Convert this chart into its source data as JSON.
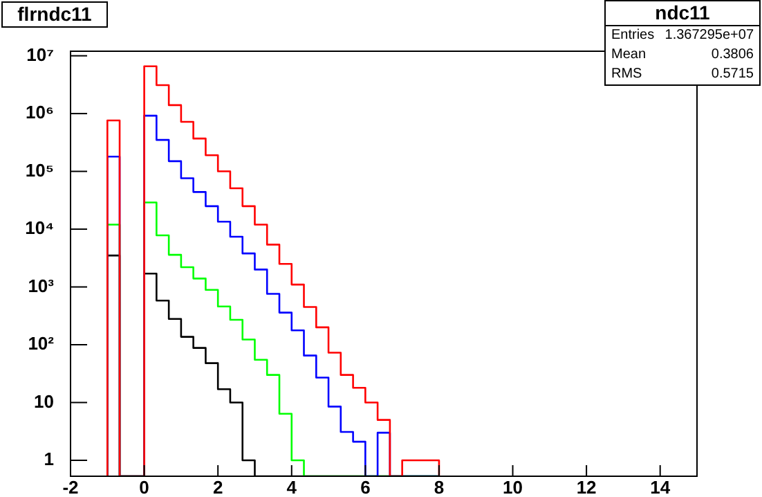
{
  "chart_data": {
    "type": "histogram",
    "title": "flrndc11",
    "annotations": [
      "ndc11",
      "Entries 1.367295e+07",
      "Mean 0.3806",
      "RMS 0.5715"
    ],
    "bins": [
      -1,
      -0.667,
      -0.333,
      0,
      0.333,
      0.667,
      1,
      1.333,
      1.667,
      2,
      2.333,
      2.667,
      3,
      3.333,
      3.667,
      4,
      4.333,
      4.667,
      5,
      5.333,
      5.667,
      6,
      6.333,
      6.667,
      7,
      7.333,
      7.667,
      8
    ],
    "series": [
      {
        "color": "#ff0000",
        "values": [
          760000,
          null,
          null,
          6600000,
          3100000,
          1400000,
          720000,
          370000,
          190000,
          100000,
          51000,
          25000,
          12000,
          5400,
          2500,
          1100,
          450,
          200,
          73,
          30,
          18,
          10,
          5,
          null,
          1,
          1,
          1
        ]
      },
      {
        "color": "#0000ff",
        "values": [
          180000,
          null,
          null,
          920000,
          350000,
          150000,
          76000,
          44000,
          25000,
          13500,
          7400,
          3800,
          2000,
          760,
          360,
          177,
          65,
          27,
          8.5,
          3.1,
          2.1,
          null,
          3,
          null,
          null,
          null,
          null
        ]
      },
      {
        "color": "#00ff00",
        "values": [
          12000,
          null,
          null,
          29000,
          7800,
          3600,
          2200,
          1400,
          890,
          460,
          270,
          123,
          55,
          30,
          6.4,
          1,
          null,
          null,
          null,
          null,
          null,
          null,
          null,
          null,
          null,
          null,
          null
        ]
      },
      {
        "color": "#000000",
        "values": [
          3500,
          null,
          null,
          1700,
          580,
          280,
          137,
          88,
          48,
          17,
          10,
          1,
          null,
          null,
          null,
          null,
          null,
          null,
          null,
          null,
          null,
          null,
          null,
          null,
          null,
          null,
          null
        ]
      }
    ],
    "xlim": [
      -2,
      15
    ],
    "xticks": [
      -2,
      0,
      2,
      4,
      6,
      8,
      10,
      12,
      14
    ],
    "ylim": [
      0.53,
      12000000
    ],
    "yticks": [
      1,
      10,
      {
        "value": 100,
        "label": "10²"
      },
      {
        "value": 1000,
        "label": "10³"
      },
      {
        "value": 10000,
        "label": "10⁴"
      },
      {
        "value": 100000,
        "label": "10⁵"
      },
      {
        "value": 1000000,
        "label": "10⁶"
      },
      {
        "value": 10000000,
        "label": "10⁷"
      }
    ],
    "log": true
  }
}
